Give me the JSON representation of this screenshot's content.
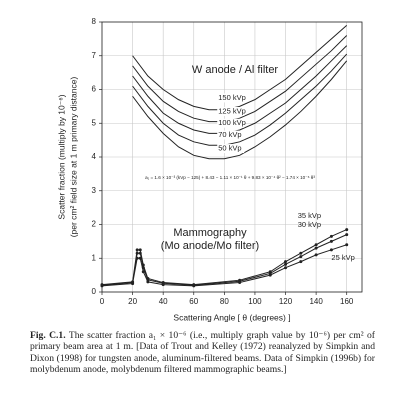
{
  "chart_data": {
    "type": "line",
    "ylabel": [
      "Scatter fraction (multiply by 10⁻⁶)",
      "(per cm² field size at 1 m primary distance)"
    ],
    "xlabel": "Scattering Angle [ θ (degrees) ]",
    "annotations": {
      "w_title": "W anode / Al filter",
      "mammo_title": "Mammography",
      "mammo_subtitle": "(Mo anode/Mo filter)",
      "formula": "a₁ = 1.6 × 10⁻³ (kVp − 125) + 8.43 − 1.11 × 10⁻¹ θ + 9.83 × 10⁻⁴ θ² − 1.74 × 10⁻⁶ θ³"
    },
    "xlim": [
      0,
      170
    ],
    "xticks": [
      0,
      20,
      40,
      60,
      80,
      100,
      120,
      140,
      160
    ],
    "ylim": [
      0,
      8
    ],
    "yticks": [
      0,
      1,
      2,
      3,
      4,
      5,
      6,
      7,
      8
    ],
    "grid": true,
    "series": [
      {
        "name": "150 kVp",
        "color": "#222222",
        "x": [
          20,
          30,
          40,
          50,
          60,
          70,
          80,
          90,
          100,
          110,
          120,
          130,
          140,
          150,
          160
        ],
        "values": [
          7.0,
          6.4,
          6.0,
          5.7,
          5.5,
          5.4,
          5.4,
          5.5,
          5.7,
          6.0,
          6.3,
          6.7,
          7.1,
          7.5,
          7.9
        ]
      },
      {
        "name": "125 kVp",
        "color": "#222222",
        "x": [
          20,
          30,
          40,
          50,
          60,
          70,
          80,
          90,
          100,
          110,
          120,
          130,
          140,
          150,
          160
        ],
        "values": [
          6.7,
          6.1,
          5.65,
          5.35,
          5.15,
          5.05,
          5.05,
          5.15,
          5.35,
          5.65,
          5.95,
          6.35,
          6.75,
          7.15,
          7.6
        ]
      },
      {
        "name": "100 kVp",
        "color": "#222222",
        "x": [
          20,
          30,
          40,
          50,
          60,
          70,
          80,
          90,
          100,
          110,
          120,
          130,
          140,
          150,
          160
        ],
        "values": [
          6.4,
          5.8,
          5.3,
          5.0,
          4.8,
          4.7,
          4.7,
          4.8,
          5.0,
          5.3,
          5.6,
          6.0,
          6.4,
          6.85,
          7.3
        ]
      },
      {
        "name": "70 kVp",
        "color": "#222222",
        "x": [
          20,
          30,
          40,
          50,
          60,
          70,
          80,
          90,
          100,
          110,
          120,
          130,
          140,
          150,
          160
        ],
        "values": [
          6.1,
          5.5,
          5.0,
          4.65,
          4.45,
          4.35,
          4.35,
          4.45,
          4.65,
          4.95,
          5.3,
          5.7,
          6.1,
          6.55,
          7.05
        ]
      },
      {
        "name": "50 kVp",
        "color": "#222222",
        "x": [
          20,
          30,
          40,
          50,
          60,
          70,
          80,
          90,
          100,
          110,
          120,
          130,
          140,
          150,
          160
        ],
        "values": [
          5.8,
          5.2,
          4.7,
          4.3,
          4.05,
          3.95,
          3.95,
          4.05,
          4.3,
          4.6,
          4.95,
          5.35,
          5.8,
          6.3,
          6.85
        ]
      },
      {
        "name": "35 kVp",
        "color": "#222222",
        "marker": "circle",
        "x": [
          0,
          20,
          23,
          25,
          27,
          30,
          40,
          60,
          90,
          110,
          120,
          130,
          140,
          150,
          160
        ],
        "values": [
          0.22,
          0.3,
          1.25,
          1.25,
          0.8,
          0.4,
          0.28,
          0.22,
          0.35,
          0.6,
          0.9,
          1.15,
          1.4,
          1.65,
          1.85
        ]
      },
      {
        "name": "30 kVp",
        "color": "#222222",
        "marker": "circle",
        "x": [
          0,
          20,
          23,
          25,
          27,
          30,
          40,
          60,
          90,
          110,
          120,
          130,
          140,
          150,
          160
        ],
        "values": [
          0.2,
          0.28,
          1.15,
          1.15,
          0.72,
          0.36,
          0.26,
          0.2,
          0.32,
          0.55,
          0.82,
          1.05,
          1.3,
          1.5,
          1.7
        ]
      },
      {
        "name": "25 kVp",
        "color": "#222222",
        "marker": "circle",
        "x": [
          0,
          20,
          23,
          25,
          27,
          30,
          40,
          60,
          90,
          110,
          120,
          130,
          140,
          150,
          160
        ],
        "values": [
          0.18,
          0.25,
          1.0,
          1.0,
          0.6,
          0.3,
          0.22,
          0.18,
          0.28,
          0.5,
          0.72,
          0.9,
          1.1,
          1.25,
          1.4
        ]
      }
    ]
  },
  "caption": {
    "label": "Fig. C.1.",
    "text": "The scatter fraction a₁ × 10⁻⁶ (i.e., multiply graph value by 10⁻⁶) per cm² of primary beam area at 1 m. [Data of Trout and Kelley (1972) reanalyzed by Simpkin and Dixon (1998) for tungsten anode, aluminum-filtered beams. Data of Simpkin (1996b) for molybdenum anode, molybdenum filtered mammographic beams.]"
  }
}
